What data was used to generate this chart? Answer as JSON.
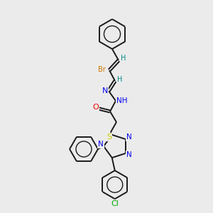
{
  "background_color": "#ebebeb",
  "bond_color": "#1a1a1a",
  "atom_colors": {
    "Br": "#cc7700",
    "N": "#0000ee",
    "O": "#ee0000",
    "S": "#cccc00",
    "Cl": "#00aa00",
    "H": "#008888",
    "C": "#1a1a1a"
  },
  "figsize": [
    3.0,
    3.0
  ],
  "dpi": 100
}
